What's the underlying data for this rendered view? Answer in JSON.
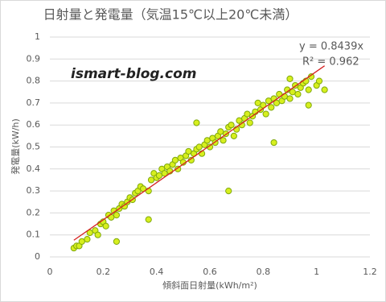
{
  "chart_data": {
    "type": "scatter",
    "title": "日射量と発電量（気温15℃以上20℃未満）",
    "x_label": "傾斜面日射量(kWh/m²)",
    "y_label": "発電量(kW/h)",
    "annotations": [
      "y = 0.8439x",
      "R² = 0.962",
      "ismart-blog.com"
    ],
    "trendline_slope": 0.8439,
    "trendline_color": "#d62020",
    "color": "#d7ef1e",
    "edge_color": "#7fa80c",
    "grid": true,
    "xlim": [
      0,
      1.2
    ],
    "xticks": [
      0,
      0.2,
      0.4,
      0.6,
      0.8,
      1,
      1.2
    ],
    "ylim": [
      0,
      1
    ],
    "yticks": [
      0,
      0.1,
      0.2,
      0.3,
      0.4,
      0.5,
      0.6,
      0.7,
      0.8,
      0.9,
      1
    ],
    "x": [
      0.09,
      0.1,
      0.11,
      0.12,
      0.14,
      0.15,
      0.17,
      0.18,
      0.19,
      0.2,
      0.21,
      0.22,
      0.23,
      0.24,
      0.25,
      0.25,
      0.26,
      0.27,
      0.28,
      0.29,
      0.3,
      0.31,
      0.32,
      0.33,
      0.34,
      0.35,
      0.37,
      0.37,
      0.38,
      0.39,
      0.4,
      0.41,
      0.42,
      0.43,
      0.44,
      0.45,
      0.46,
      0.47,
      0.48,
      0.49,
      0.5,
      0.51,
      0.52,
      0.53,
      0.54,
      0.55,
      0.55,
      0.56,
      0.57,
      0.58,
      0.59,
      0.6,
      0.61,
      0.62,
      0.63,
      0.64,
      0.65,
      0.66,
      0.67,
      0.67,
      0.68,
      0.69,
      0.7,
      0.71,
      0.72,
      0.73,
      0.74,
      0.75,
      0.76,
      0.77,
      0.78,
      0.79,
      0.8,
      0.81,
      0.82,
      0.83,
      0.84,
      0.84,
      0.85,
      0.86,
      0.87,
      0.88,
      0.89,
      0.9,
      0.9,
      0.91,
      0.92,
      0.93,
      0.94,
      0.95,
      0.96,
      0.97,
      0.97,
      0.98,
      1.0,
      1.01,
      1.03
    ],
    "values": [
      0.04,
      0.05,
      0.05,
      0.07,
      0.08,
      0.11,
      0.12,
      0.1,
      0.15,
      0.16,
      0.14,
      0.19,
      0.18,
      0.21,
      0.19,
      0.07,
      0.22,
      0.24,
      0.23,
      0.25,
      0.27,
      0.26,
      0.29,
      0.3,
      0.32,
      0.31,
      0.17,
      0.3,
      0.35,
      0.38,
      0.36,
      0.37,
      0.4,
      0.38,
      0.41,
      0.39,
      0.42,
      0.44,
      0.4,
      0.45,
      0.43,
      0.46,
      0.48,
      0.44,
      0.47,
      0.61,
      0.49,
      0.5,
      0.47,
      0.51,
      0.53,
      0.5,
      0.54,
      0.52,
      0.55,
      0.57,
      0.53,
      0.56,
      0.3,
      0.59,
      0.6,
      0.55,
      0.58,
      0.62,
      0.6,
      0.63,
      0.65,
      0.61,
      0.64,
      0.66,
      0.7,
      0.67,
      0.69,
      0.65,
      0.71,
      0.68,
      0.52,
      0.72,
      0.7,
      0.74,
      0.71,
      0.73,
      0.76,
      0.81,
      0.72,
      0.75,
      0.78,
      0.74,
      0.77,
      0.79,
      0.8,
      0.69,
      0.76,
      0.82,
      0.78,
      0.8,
      0.76
    ]
  }
}
